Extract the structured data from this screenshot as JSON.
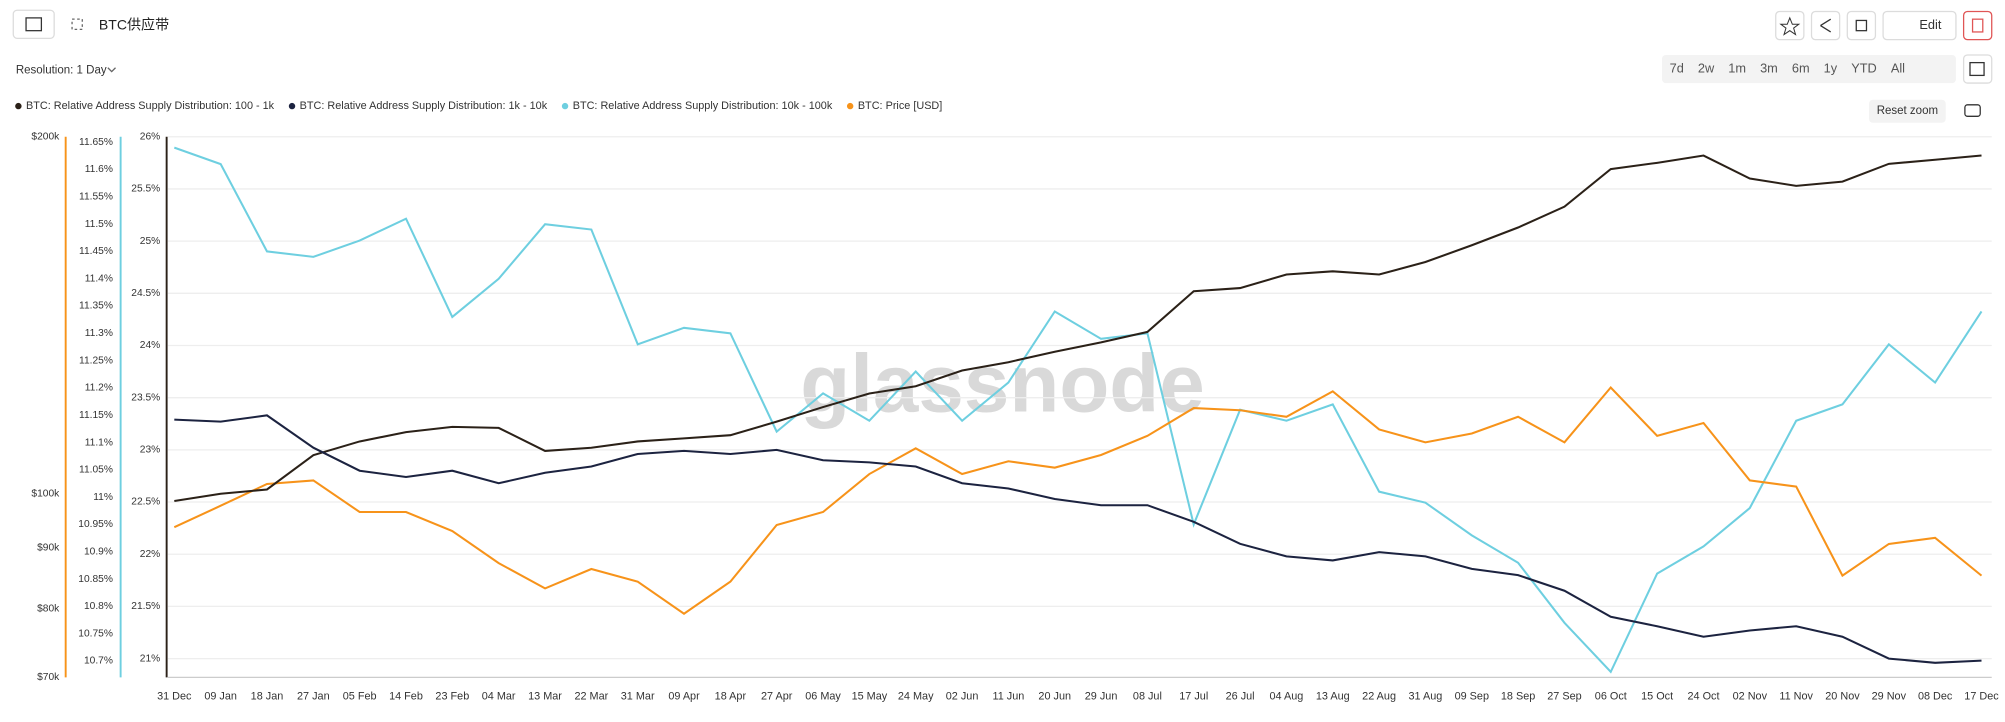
{
  "toolbar": {
    "resolution": "Resolution: 1 Day",
    "ranges": [
      "7d",
      "2w",
      "1m",
      "3m",
      "6m",
      "1y",
      "YTD",
      "All"
    ],
    "edit": "Edit",
    "reset_zoom": "Reset zoom"
  },
  "chart_data": {
    "type": "line",
    "title": "BTC供应带",
    "watermark": "glassnode",
    "categories": [
      "31 Dec",
      "09 Jan",
      "18 Jan",
      "27 Jan",
      "05 Feb",
      "14 Feb",
      "23 Feb",
      "04 Mar",
      "13 Mar",
      "22 Mar",
      "31 Mar",
      "09 Apr",
      "18 Apr",
      "27 Apr",
      "06 May",
      "15 May",
      "24 May",
      "02 Jun",
      "11 Jun",
      "20 Jun",
      "29 Jun",
      "08 Jul",
      "17 Jul",
      "26 Jul",
      "04 Aug",
      "13 Aug",
      "22 Aug",
      "31 Aug",
      "09 Sep",
      "18 Sep",
      "27 Sep",
      "06 Oct",
      "15 Oct",
      "24 Oct",
      "02 Nov",
      "11 Nov",
      "20 Nov",
      "29 Nov",
      "08 Dec",
      "17 Dec"
    ],
    "series": [
      {
        "name": "BTC: Relative Address Supply Distribution: 100 - 1k",
        "color": "#2b2118",
        "axis": "y3",
        "values": [
          22.51,
          22.58,
          22.62,
          22.95,
          23.08,
          23.17,
          23.22,
          23.21,
          22.99,
          23.02,
          23.08,
          23.11,
          23.14,
          23.27,
          23.41,
          23.54,
          23.61,
          23.76,
          23.84,
          23.94,
          24.03,
          24.13,
          24.52,
          24.55,
          24.68,
          24.71,
          24.68,
          24.8,
          24.96,
          25.13,
          25.33,
          25.69,
          25.75,
          25.82,
          25.6,
          25.53,
          25.57,
          25.74,
          25.78,
          25.82
        ]
      },
      {
        "name": "BTC: Relative Address Supply Distribution: 1k - 10k",
        "color": "#1c2340",
        "axis": "y3",
        "values": [
          23.29,
          23.27,
          23.33,
          23.02,
          22.8,
          22.74,
          22.8,
          22.68,
          22.78,
          22.84,
          22.96,
          22.99,
          22.96,
          23.0,
          22.9,
          22.88,
          22.84,
          22.68,
          22.63,
          22.53,
          22.47,
          22.47,
          22.31,
          22.1,
          21.98,
          21.94,
          22.02,
          21.98,
          21.86,
          21.8,
          21.65,
          21.4,
          21.31,
          21.21,
          21.27,
          21.31,
          21.21,
          21.0,
          20.96,
          20.98
        ]
      },
      {
        "name": "BTC: Relative Address Supply Distribution: 10k - 100k",
        "color": "#6ecfe0",
        "axis": "y2",
        "values": [
          11.64,
          11.61,
          11.45,
          11.44,
          11.47,
          11.51,
          11.33,
          11.4,
          11.5,
          11.49,
          11.28,
          11.31,
          11.3,
          11.12,
          11.19,
          11.14,
          11.23,
          11.14,
          11.21,
          11.34,
          11.29,
          11.3,
          10.95,
          11.16,
          11.14,
          11.17,
          11.01,
          10.99,
          10.93,
          10.88,
          10.77,
          10.68,
          10.86,
          10.91,
          10.98,
          11.14,
          11.17,
          11.28,
          11.21,
          11.34
        ]
      },
      {
        "name": "BTC: Price [USD]",
        "color": "#f7931a",
        "axis": "y",
        "values": [
          93700,
          97700,
          101900,
          102600,
          96500,
          96500,
          93000,
          87400,
          83200,
          86400,
          84300,
          79200,
          84300,
          94100,
          96500,
          103900,
          109200,
          103900,
          106500,
          105200,
          107800,
          111900,
          118100,
          117600,
          116100,
          122000,
          113300,
          110500,
          112400,
          116100,
          110500,
          122900,
          111900,
          114700,
          102600,
          101400,
          85300,
          90700,
          91800,
          85300
        ]
      }
    ],
    "ylim": [
      70000,
      200000
    ],
    "ylog": true,
    "yticks": [
      {
        "value": 70000,
        "label": "$70k"
      },
      {
        "value": 80000,
        "label": "$80k"
      },
      {
        "value": 90000,
        "label": "$90k"
      },
      {
        "value": 100000,
        "label": "$100k"
      },
      {
        "value": 200000,
        "label": "$200k"
      }
    ],
    "y2lim": [
      10.67,
      11.66
    ],
    "y2ticks": [
      {
        "value": 10.7,
        "label": "10.7%"
      },
      {
        "value": 10.75,
        "label": "10.75%"
      },
      {
        "value": 10.8,
        "label": "10.8%"
      },
      {
        "value": 10.85,
        "label": "10.85%"
      },
      {
        "value": 10.9,
        "label": "10.9%"
      },
      {
        "value": 10.95,
        "label": "10.95%"
      },
      {
        "value": 11.0,
        "label": "11%"
      },
      {
        "value": 11.05,
        "label": "11.05%"
      },
      {
        "value": 11.1,
        "label": "11.1%"
      },
      {
        "value": 11.15,
        "label": "11.15%"
      },
      {
        "value": 11.2,
        "label": "11.2%"
      },
      {
        "value": 11.25,
        "label": "11.25%"
      },
      {
        "value": 11.3,
        "label": "11.3%"
      },
      {
        "value": 11.35,
        "label": "11.35%"
      },
      {
        "value": 11.4,
        "label": "11.4%"
      },
      {
        "value": 11.45,
        "label": "11.45%"
      },
      {
        "value": 11.5,
        "label": "11.5%"
      },
      {
        "value": 11.55,
        "label": "11.55%"
      },
      {
        "value": 11.6,
        "label": "11.6%"
      },
      {
        "value": 11.65,
        "label": "11.65%"
      }
    ],
    "y3lim": [
      20.82,
      26
    ],
    "y3ticks": [
      {
        "value": 21,
        "label": "21%"
      },
      {
        "value": 21.5,
        "label": "21.5%"
      },
      {
        "value": 22,
        "label": "22%"
      },
      {
        "value": 22.5,
        "label": "22.5%"
      },
      {
        "value": 23,
        "label": "23%"
      },
      {
        "value": 23.5,
        "label": "23.5%"
      },
      {
        "value": 24,
        "label": "24%"
      },
      {
        "value": 24.5,
        "label": "24.5%"
      },
      {
        "value": 25,
        "label": "25%"
      },
      {
        "value": 25.5,
        "label": "25.5%"
      },
      {
        "value": 26,
        "label": "26%"
      }
    ],
    "grid": true
  }
}
